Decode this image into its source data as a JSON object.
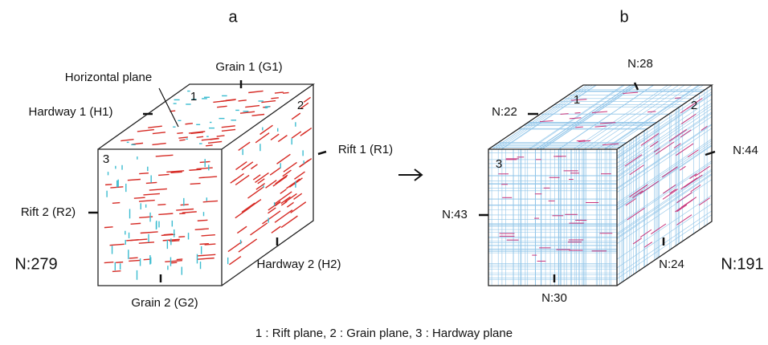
{
  "panels": [
    {
      "label": "a",
      "face_numbers": [
        "1",
        "2",
        "3"
      ],
      "annotations": [
        "Horizontal plane",
        "Grain 1 (G1)",
        "Hardway 1 (H1)",
        "Rift 1 (R1)",
        "Rift 2 (R2)",
        "Hardway 2 (H2)",
        "Grain 2 (G2)"
      ],
      "count": "N:279"
    },
    {
      "label": "b",
      "face_numbers": [
        "1",
        "2",
        "3"
      ],
      "annotations": [
        "N:28",
        "N:22",
        "N:44",
        "N:43",
        "N:24",
        "N:30"
      ],
      "count": "N:191"
    }
  ],
  "caption": "1 : Rift plane,  2 : Grain plane, 3 : Hardway plane"
}
